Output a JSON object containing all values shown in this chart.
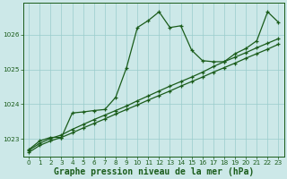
{
  "title": "Graphe pression niveau de la mer (hPa)",
  "bg_color": "#cce8e8",
  "plot_bg_color": "#cce8e8",
  "grid_color": "#99cccc",
  "line_color": "#1a5c1a",
  "ylim": [
    1022.5,
    1026.9
  ],
  "yticks": [
    1023,
    1024,
    1025,
    1026
  ],
  "xticks": [
    0,
    1,
    2,
    3,
    4,
    5,
    6,
    7,
    8,
    9,
    10,
    11,
    12,
    13,
    14,
    15,
    16,
    17,
    18,
    19,
    20,
    21,
    22,
    23
  ],
  "series_wavy_x": [
    0,
    1,
    2,
    3,
    4,
    5,
    6,
    7,
    8,
    9,
    10,
    11,
    12,
    13,
    14,
    15,
    16,
    17,
    18,
    19,
    20,
    21,
    22,
    23
  ],
  "series_wavy_y": [
    1022.7,
    1022.95,
    1023.05,
    1023.05,
    1023.75,
    1023.78,
    1023.82,
    1023.85,
    1024.2,
    1025.05,
    1026.2,
    1026.4,
    1026.65,
    1026.2,
    1026.25,
    1025.55,
    1025.25,
    1025.22,
    1025.22,
    1025.45,
    1025.6,
    1025.82,
    1026.65,
    1026.35
  ],
  "series_linear1_x": [
    0,
    1,
    2,
    3,
    4,
    5,
    6,
    7,
    8,
    9,
    10,
    11,
    12,
    13,
    14,
    15,
    16,
    17,
    18,
    19,
    20,
    21,
    22,
    23
  ],
  "series_linear1_y": [
    1022.62,
    1022.82,
    1022.95,
    1023.05,
    1023.18,
    1023.32,
    1023.45,
    1023.58,
    1023.72,
    1023.85,
    1023.98,
    1024.12,
    1024.25,
    1024.38,
    1024.52,
    1024.65,
    1024.78,
    1024.92,
    1025.05,
    1025.18,
    1025.32,
    1025.45,
    1025.58,
    1025.72
  ],
  "series_linear2_x": [
    0,
    1,
    2,
    3,
    4,
    5,
    6,
    7,
    8,
    9,
    10,
    11,
    12,
    13,
    14,
    15,
    16,
    17,
    18,
    19,
    20,
    21,
    22,
    23
  ],
  "series_linear2_y": [
    1022.68,
    1022.88,
    1023.02,
    1023.12,
    1023.28,
    1023.42,
    1023.56,
    1023.69,
    1023.82,
    1023.95,
    1024.1,
    1024.24,
    1024.38,
    1024.52,
    1024.65,
    1024.78,
    1024.92,
    1025.08,
    1025.22,
    1025.35,
    1025.48,
    1025.62,
    1025.75,
    1025.88
  ],
  "marker": "+",
  "markersize": 3.5,
  "linewidth": 0.9,
  "title_fontsize": 7.0,
  "tick_fontsize": 5.2
}
